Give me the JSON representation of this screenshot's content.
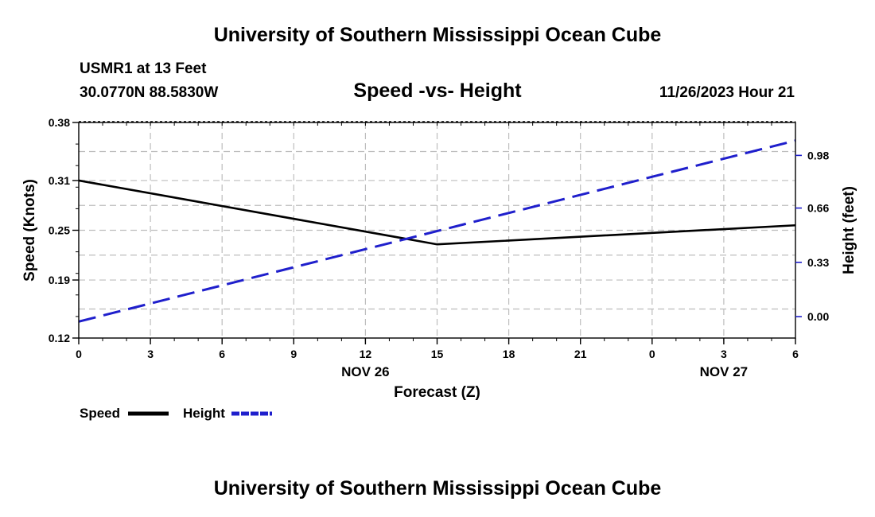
{
  "page": {
    "title_top": "University of Southern Mississippi Ocean Cube",
    "title_bottom": "University of Southern Mississippi Ocean Cube",
    "station": "USMR1 at 13 Feet",
    "coords": "30.0770N  88.5830W",
    "chart_title": "Speed -vs- Height",
    "date": "11/26/2023 Hour 21"
  },
  "colors": {
    "speed": "#000000",
    "height": "#1f1fcc",
    "grid": "#bdbdbd"
  },
  "chart_data": {
    "type": "line",
    "title": "Speed -vs- Height",
    "xlabel": "Forecast (Z)",
    "ylabel": "Speed (Knots)",
    "ylabel_right": "Height (feet)",
    "x_tick_labels": [
      "0",
      "3",
      "6",
      "9",
      "12",
      "15",
      "18",
      "21",
      "0",
      "3",
      "6"
    ],
    "x_hours": [
      0,
      3,
      6,
      9,
      12,
      15,
      18,
      21,
      24,
      27,
      30
    ],
    "date_labels": [
      {
        "label": "NOV 26",
        "x": 12
      },
      {
        "label": "NOV 27",
        "x": 27
      }
    ],
    "xlim": [
      0,
      30
    ],
    "ylim": [
      0.12,
      0.38
    ],
    "y_ticks": [
      0.12,
      0.19,
      0.25,
      0.31,
      0.38
    ],
    "y_tick_labels": [
      "0.12",
      "0.19",
      "0.25",
      "0.31",
      "0.38"
    ],
    "y2lim": [
      -0.13,
      1.18
    ],
    "y2_ticks": [
      0.0,
      0.33,
      0.66,
      0.98
    ],
    "y2_tick_labels": [
      "0.00",
      "0.33",
      "0.66",
      "0.98"
    ],
    "series": [
      {
        "name": "Speed",
        "axis": "left",
        "style": "solid",
        "x": [
          0,
          15,
          30
        ],
        "values": [
          0.31,
          0.233,
          0.256
        ]
      },
      {
        "name": "Height",
        "axis": "right",
        "style": "dashed",
        "x": [
          0,
          30
        ],
        "values": [
          -0.03,
          1.07
        ]
      }
    ],
    "legend": [
      {
        "label": "Speed",
        "series": "Speed"
      },
      {
        "label": "Height",
        "series": "Height"
      }
    ],
    "grid": true
  }
}
